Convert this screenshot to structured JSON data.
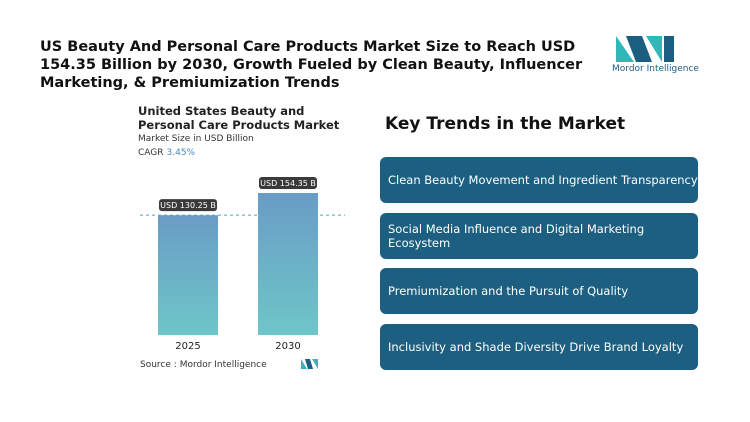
{
  "header": {
    "title": "US Beauty And Personal Care Products Market Size to Reach USD 154.35 Billion by 2030, Growth Fueled by Clean Beauty, Influencer Marketing, & Premiumization Trends",
    "brand": "Mordor Intelligence"
  },
  "chart_data": {
    "type": "bar",
    "title": "United States Beauty and Personal Care Products Market",
    "subtitle": "Market Size in USD Billion",
    "cagr_label": "CAGR",
    "cagr": "3.45%",
    "categories": [
      "2025",
      "2030"
    ],
    "values": [
      130.25,
      154.35
    ],
    "value_labels": [
      "USD 130.25 B",
      "USD 154.35 B"
    ],
    "color": "#6a9cc6"
  },
  "trends": {
    "title": "Key Trends in the Market",
    "items": [
      "Clean Beauty Movement and Ingredient Transparency",
      "Social Media Influence and Digital Marketing Ecosystem",
      "Premiumization and the Pursuit of Quality",
      "Inclusivity and Shade Diversity Drive Brand Loyalty"
    ]
  },
  "source": {
    "label": "Source :",
    "text": "Mordor Intelligence"
  }
}
